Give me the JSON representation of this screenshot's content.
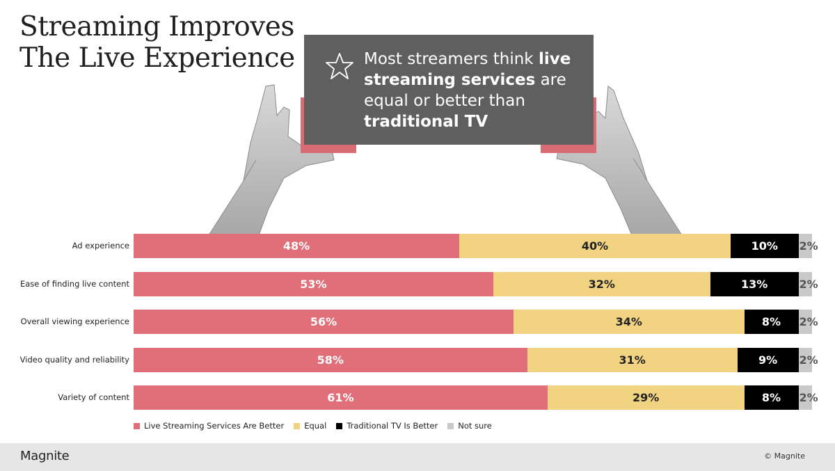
{
  "title_lines": [
    "Streaming Improves",
    "The Live Experience"
  ],
  "callout": {
    "part1": "Most streamers think ",
    "bold1": "live streaming services",
    "part2": " are equal or better than ",
    "bold2": "traditional TV"
  },
  "colors": {
    "live": "#e06f7a",
    "equal": "#f1d382",
    "traditional": "#000000",
    "not_sure": "#c9c9c9",
    "callout_bg": "#5f5f5f",
    "accent": "#d96b74"
  },
  "chart_data": {
    "type": "bar",
    "orientation": "horizontal",
    "stacked": true,
    "categories": [
      "Ad experience",
      "Ease of finding live content",
      "Overall viewing experience",
      "Video quality and reliability",
      "Variety of content"
    ],
    "series": [
      {
        "name": "Live Streaming Services Are Better",
        "values": [
          48,
          53,
          56,
          58,
          61
        ],
        "labels": [
          "48%",
          "53%",
          "56%",
          "58%",
          "61%"
        ]
      },
      {
        "name": "Equal",
        "values": [
          40,
          32,
          34,
          31,
          29
        ],
        "labels": [
          "40%",
          "32%",
          "34%",
          "31%",
          "29%"
        ]
      },
      {
        "name": "Traditional TV Is Better",
        "values": [
          10,
          13,
          8,
          9,
          8
        ],
        "labels": [
          "10%",
          "13%",
          "8%",
          "9%",
          "8%"
        ]
      },
      {
        "name": "Not sure",
        "values": [
          2,
          2,
          2,
          2,
          2
        ],
        "labels": [
          "2%",
          "2%",
          "2%",
          "2%",
          "2%"
        ]
      }
    ],
    "xlim": [
      0,
      100
    ],
    "legend_position": "bottom",
    "grid": false
  },
  "footer": {
    "logo": "Magnite",
    "copyright": "© Magnite"
  }
}
